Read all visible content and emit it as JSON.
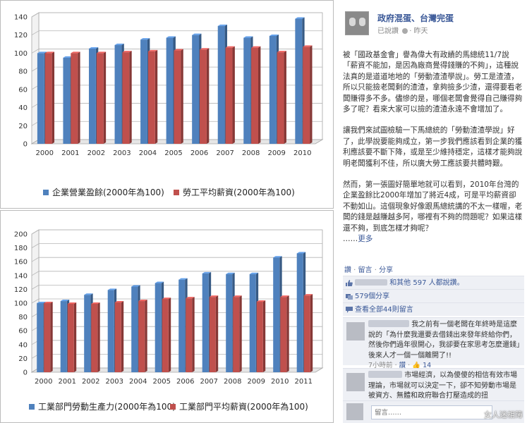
{
  "chart_data": [
    {
      "type": "bar",
      "categories": [
        "2000",
        "2001",
        "2002",
        "2003",
        "2004",
        "2005",
        "2006",
        "2007",
        "2008",
        "2009",
        "2010"
      ],
      "ylim": [
        0,
        140
      ],
      "yticks": [
        0,
        20,
        40,
        60,
        80,
        100,
        120,
        140
      ],
      "grid": true,
      "legend_position": "bottom",
      "series": [
        {
          "name": "企業營業盈餘(2000年為100)",
          "color": "#4f81bd",
          "values": [
            100,
            95,
            105,
            109,
            115,
            117,
            120,
            130,
            117,
            119,
            138
          ]
        },
        {
          "name": "勞工平均薪資(2000年為100)",
          "color": "#c0504d",
          "values": [
            100,
            100,
            100,
            101,
            102,
            103,
            104,
            106,
            106,
            101,
            107
          ]
        }
      ]
    },
    {
      "type": "bar",
      "categories": [
        "2000",
        "2001",
        "2002",
        "2003",
        "2004",
        "2005",
        "2006",
        "2007",
        "2008",
        "2009",
        "2010",
        "2011"
      ],
      "ylim": [
        0,
        200
      ],
      "yticks": [
        0,
        20,
        40,
        60,
        80,
        100,
        120,
        140,
        160,
        180,
        200
      ],
      "grid": true,
      "legend_position": "bottom",
      "series": [
        {
          "name": "工業部門勞動生產力(2000年為100)",
          "color": "#4f81bd",
          "values": [
            100,
            103,
            112,
            119,
            124,
            129,
            134,
            143,
            142,
            142,
            166,
            172
          ]
        },
        {
          "name": "工業部門平均薪資(2000年為100)",
          "color": "#c0504d",
          "values": [
            100,
            99,
            99,
            101,
            103,
            106,
            107,
            109,
            109,
            102,
            109,
            111
          ]
        }
      ]
    }
  ],
  "post": {
    "page_name": "政府混蛋、台灣完蛋",
    "shared_by": "已說讚",
    "time": "昨天",
    "paragraphs": [
      "被「國政基金會」譽為偉大有政績的馬總統11/7說「薪資不能加，是因為廠商覺得錢賺的不夠」，這種說法真的是道道地地的「勞動渣渣學說」。勞工是渣渣，所以只能撿老闆剩的渣渣，拿夠撿多少渣，還得要看老闆賺得多不多。儘慘的是，哪個老闆會覺得自己賺得夠多了呢？看來大家可以撿的渣渣永遠不會增加了。",
      "讓我們來試圖檢驗一下馬總統的「勞動渣渣學說」好了，此學說要能夠成立，第一步我們應該看到企業的獲利應該要不斷下降，或是至少維持穩定，這樣才能夠說明老闆獲利不佳，所以廣大勞工應該要共體時艱。",
      "然而，第一張圖好簡單地就可以看到，2010年台灣的企業盈餘比2000年增加了將近4成，可是平均薪資卻不動如山。這個現象好像跟馬總統講的不太一樣喔，老闆的錢是越賺越多阿，哪裡有不夠的問題呢？如果這樣還不夠，到底怎樣才夠呢？"
    ],
    "more_prefix": "……",
    "more_label": "更多",
    "action_like": "讚",
    "action_comment": "留言",
    "action_share": "分享",
    "likes_text": "和其他 597 人都說讚。",
    "shares_text": "579個分享",
    "view_comments": "查看全部44則留言",
    "comments": [
      {
        "text": "我之前有一個老闆在年終時是這麼說的「為什麼我還要去借錢出來發年終給你們，然後你們過年很開心，我卻要在家思考怎麼還錢」後來人才一個一個離開了!!",
        "time": "7小時前",
        "like_label": "讚",
        "likes": "14"
      },
      {
        "text": "市場經濟，以為傻傻的相信有效市場理論，市場就可以決定一下，卻不知勞動市場是被資方、無體和政府聯合打壓造成的扭"
      }
    ],
    "comment_placeholder": "留言……",
    "watermark": "女人迷相簿"
  }
}
